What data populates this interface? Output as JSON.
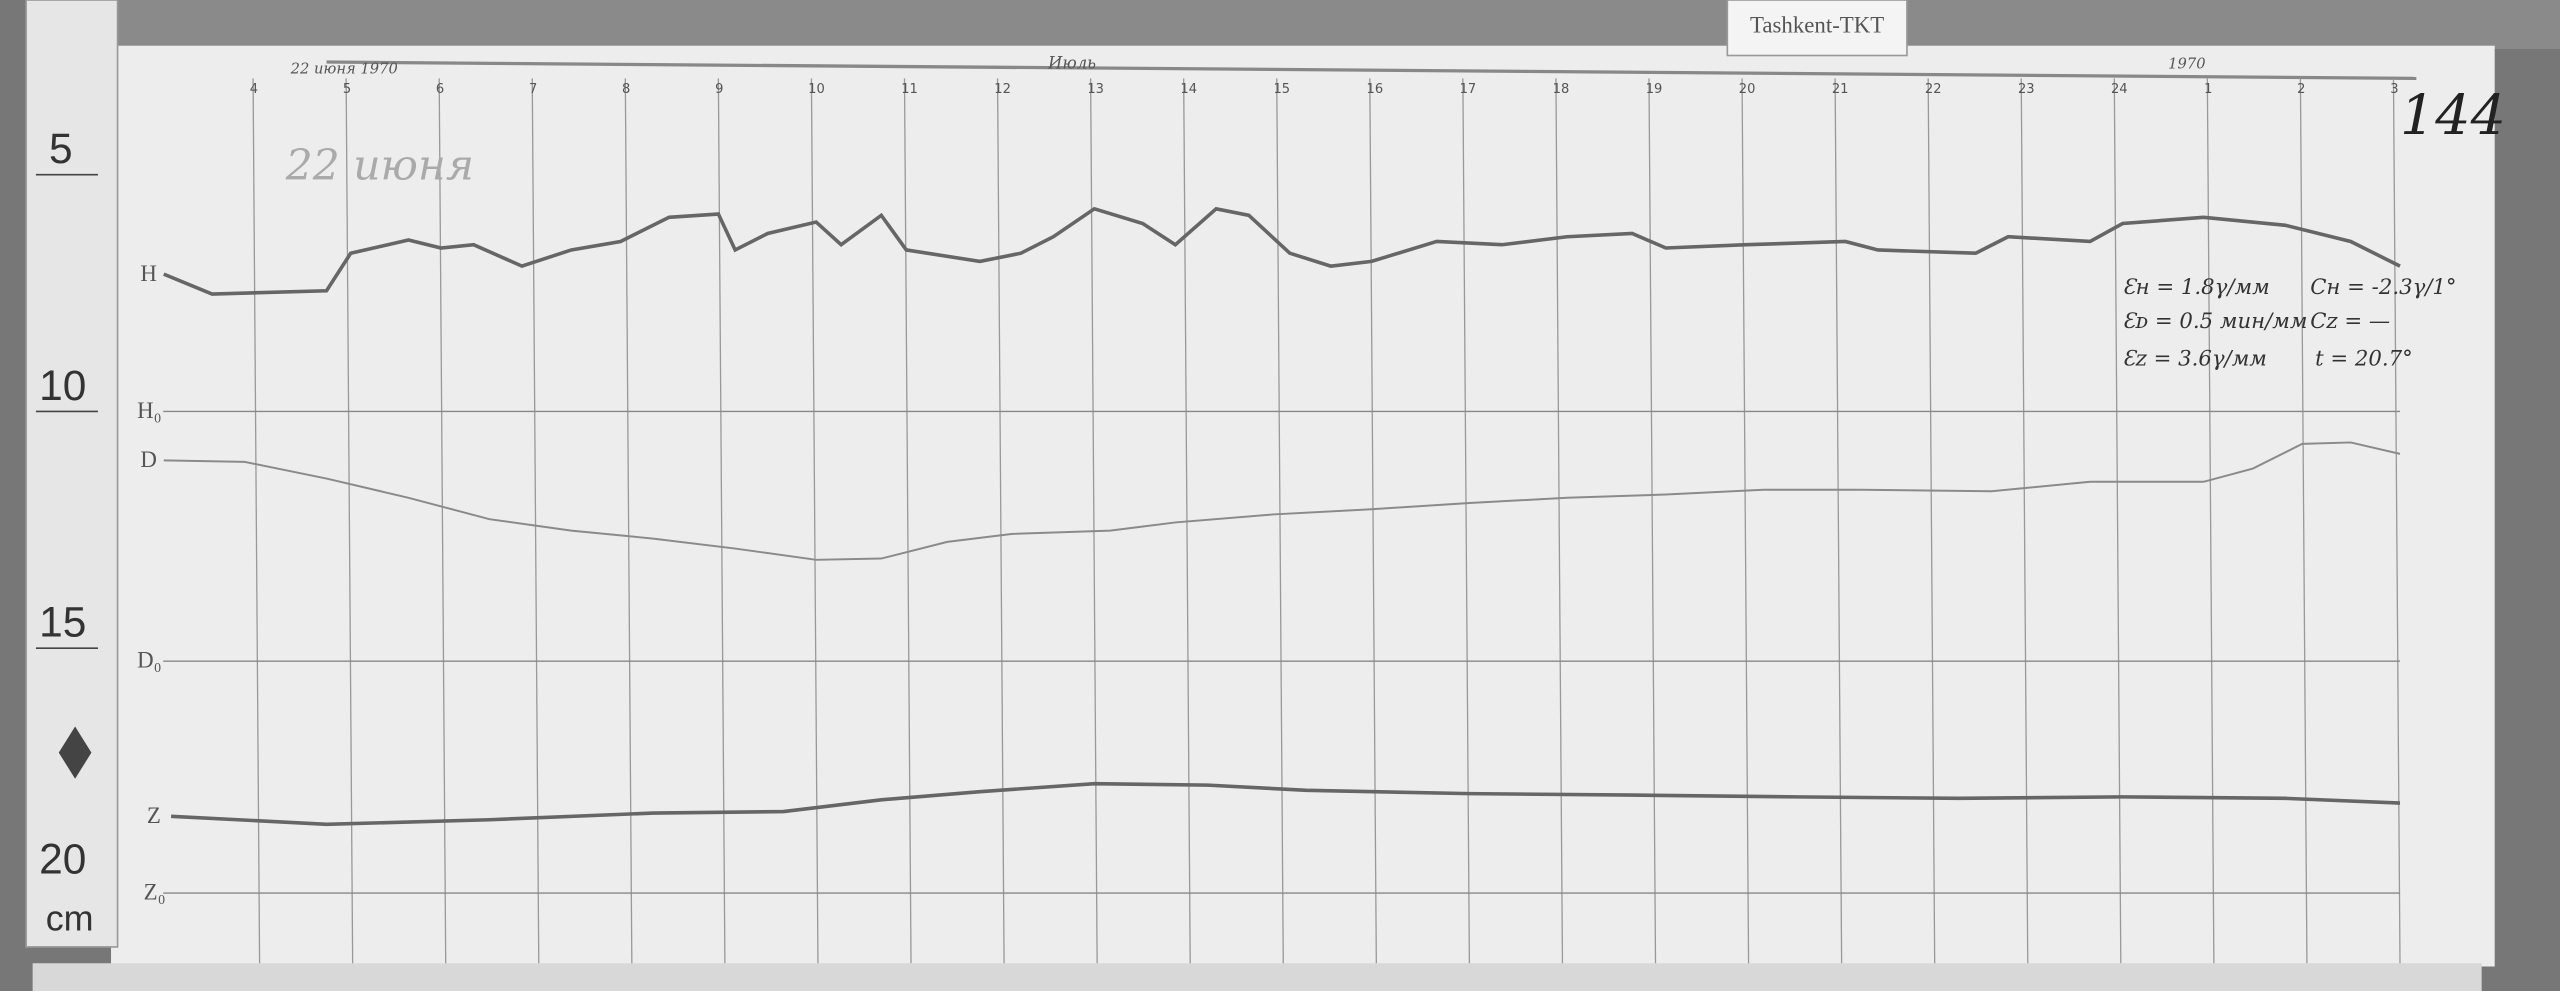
{
  "station_label": "Tashkent-TKT",
  "sheet_number": "144",
  "date_note": "22 июня",
  "header_note_left": "22 июня 1970",
  "header_note_mid": "Июль",
  "header_note_right": "1970",
  "ruler": {
    "marks": [
      "5",
      "10",
      "15",
      "20"
    ],
    "unit": "cm"
  },
  "calibration": {
    "eh": "Ɛн = 1.8γ/мм",
    "ed": "Ɛᴅ = 0.5 мин/мм",
    "ez": "Ɛᴢ = 3.6γ/мм",
    "ch": "Cн = -2.3γ/1°",
    "cz": "Cᴢ = —",
    "t": "t = 20.7°"
  },
  "chart_data": {
    "type": "line",
    "title": "",
    "xlabel": "",
    "ylabel": "",
    "x_ticks": [
      "4",
      "5",
      "6",
      "7",
      "8",
      "9",
      "10",
      "11",
      "12",
      "13",
      "14",
      "15",
      "16",
      "17",
      "18",
      "19",
      "20",
      "21",
      "22",
      "23",
      "24",
      "1",
      "2",
      "3"
    ],
    "grid": true,
    "trace_labels": {
      "H": "H",
      "H0": "H₀",
      "D": "D",
      "D0": "D₀",
      "Z": "Z",
      "Z0": "Z₀"
    },
    "series": [
      {
        "name": "H",
        "baseline": "H0",
        "points": [
          [
            3.04,
            29.0
          ],
          [
            3.56,
            24.8
          ],
          [
            4.79,
            25.5
          ],
          [
            5.05,
            33.4
          ],
          [
            5.67,
            36.2
          ],
          [
            6.02,
            34.5
          ],
          [
            6.37,
            35.2
          ],
          [
            6.89,
            30.7
          ],
          [
            7.42,
            34.1
          ],
          [
            7.95,
            35.9
          ],
          [
            8.47,
            41.0
          ],
          [
            9.0,
            41.7
          ],
          [
            9.18,
            34.1
          ],
          [
            9.53,
            37.6
          ],
          [
            10.05,
            40.0
          ],
          [
            10.32,
            35.2
          ],
          [
            10.75,
            41.4
          ],
          [
            11.02,
            34.1
          ],
          [
            11.81,
            31.7
          ],
          [
            12.25,
            33.4
          ],
          [
            12.6,
            36.9
          ],
          [
            13.04,
            42.8
          ],
          [
            13.56,
            39.7
          ],
          [
            13.91,
            35.2
          ],
          [
            14.35,
            42.8
          ],
          [
            14.7,
            41.4
          ],
          [
            15.14,
            33.4
          ],
          [
            15.58,
            30.7
          ],
          [
            16.02,
            31.7
          ],
          [
            16.72,
            35.9
          ],
          [
            17.42,
            35.2
          ],
          [
            18.12,
            36.9
          ],
          [
            18.82,
            37.6
          ],
          [
            19.18,
            34.5
          ],
          [
            20.05,
            35.2
          ],
          [
            21.11,
            35.9
          ],
          [
            21.46,
            34.1
          ],
          [
            22.51,
            33.4
          ],
          [
            22.86,
            36.9
          ],
          [
            23.74,
            35.9
          ],
          [
            24.09,
            39.7
          ],
          [
            24.96,
            41.0
          ],
          [
            25.84,
            39.3
          ],
          [
            26.54,
            35.9
          ],
          [
            27.07,
            30.7
          ]
        ]
      },
      {
        "name": "D",
        "baseline": "D0",
        "points": [
          [
            3.04,
            42.4
          ],
          [
            3.91,
            42.1
          ],
          [
            4.79,
            38.6
          ],
          [
            5.67,
            34.5
          ],
          [
            6.54,
            30.0
          ],
          [
            7.42,
            27.6
          ],
          [
            8.3,
            25.9
          ],
          [
            9.18,
            23.8
          ],
          [
            10.05,
            21.4
          ],
          [
            10.75,
            21.7
          ],
          [
            11.46,
            25.2
          ],
          [
            12.16,
            26.9
          ],
          [
            13.21,
            27.6
          ],
          [
            13.91,
            29.3
          ],
          [
            14.96,
            31.0
          ],
          [
            16.02,
            32.1
          ],
          [
            17.07,
            33.4
          ],
          [
            18.12,
            34.5
          ],
          [
            19.18,
            35.2
          ],
          [
            20.23,
            36.2
          ],
          [
            21.28,
            36.2
          ],
          [
            22.68,
            35.9
          ],
          [
            23.74,
            37.9
          ],
          [
            24.96,
            37.9
          ],
          [
            25.49,
            40.7
          ],
          [
            26.02,
            45.9
          ],
          [
            26.54,
            46.2
          ],
          [
            27.07,
            43.8
          ]
        ]
      },
      {
        "name": "Z",
        "baseline": "Z0",
        "points": [
          [
            3.12,
            16.2
          ],
          [
            4.79,
            14.5
          ],
          [
            6.54,
            15.5
          ],
          [
            8.3,
            16.9
          ],
          [
            9.7,
            17.2
          ],
          [
            10.75,
            19.7
          ],
          [
            11.81,
            21.4
          ],
          [
            13.04,
            23.1
          ],
          [
            14.26,
            22.8
          ],
          [
            15.32,
            21.7
          ],
          [
            17.07,
            21.0
          ],
          [
            18.82,
            20.7
          ],
          [
            20.58,
            20.3
          ],
          [
            22.33,
            20.0
          ],
          [
            24.09,
            20.3
          ],
          [
            25.84,
            20.0
          ],
          [
            27.07,
            19.0
          ]
        ]
      }
    ]
  }
}
